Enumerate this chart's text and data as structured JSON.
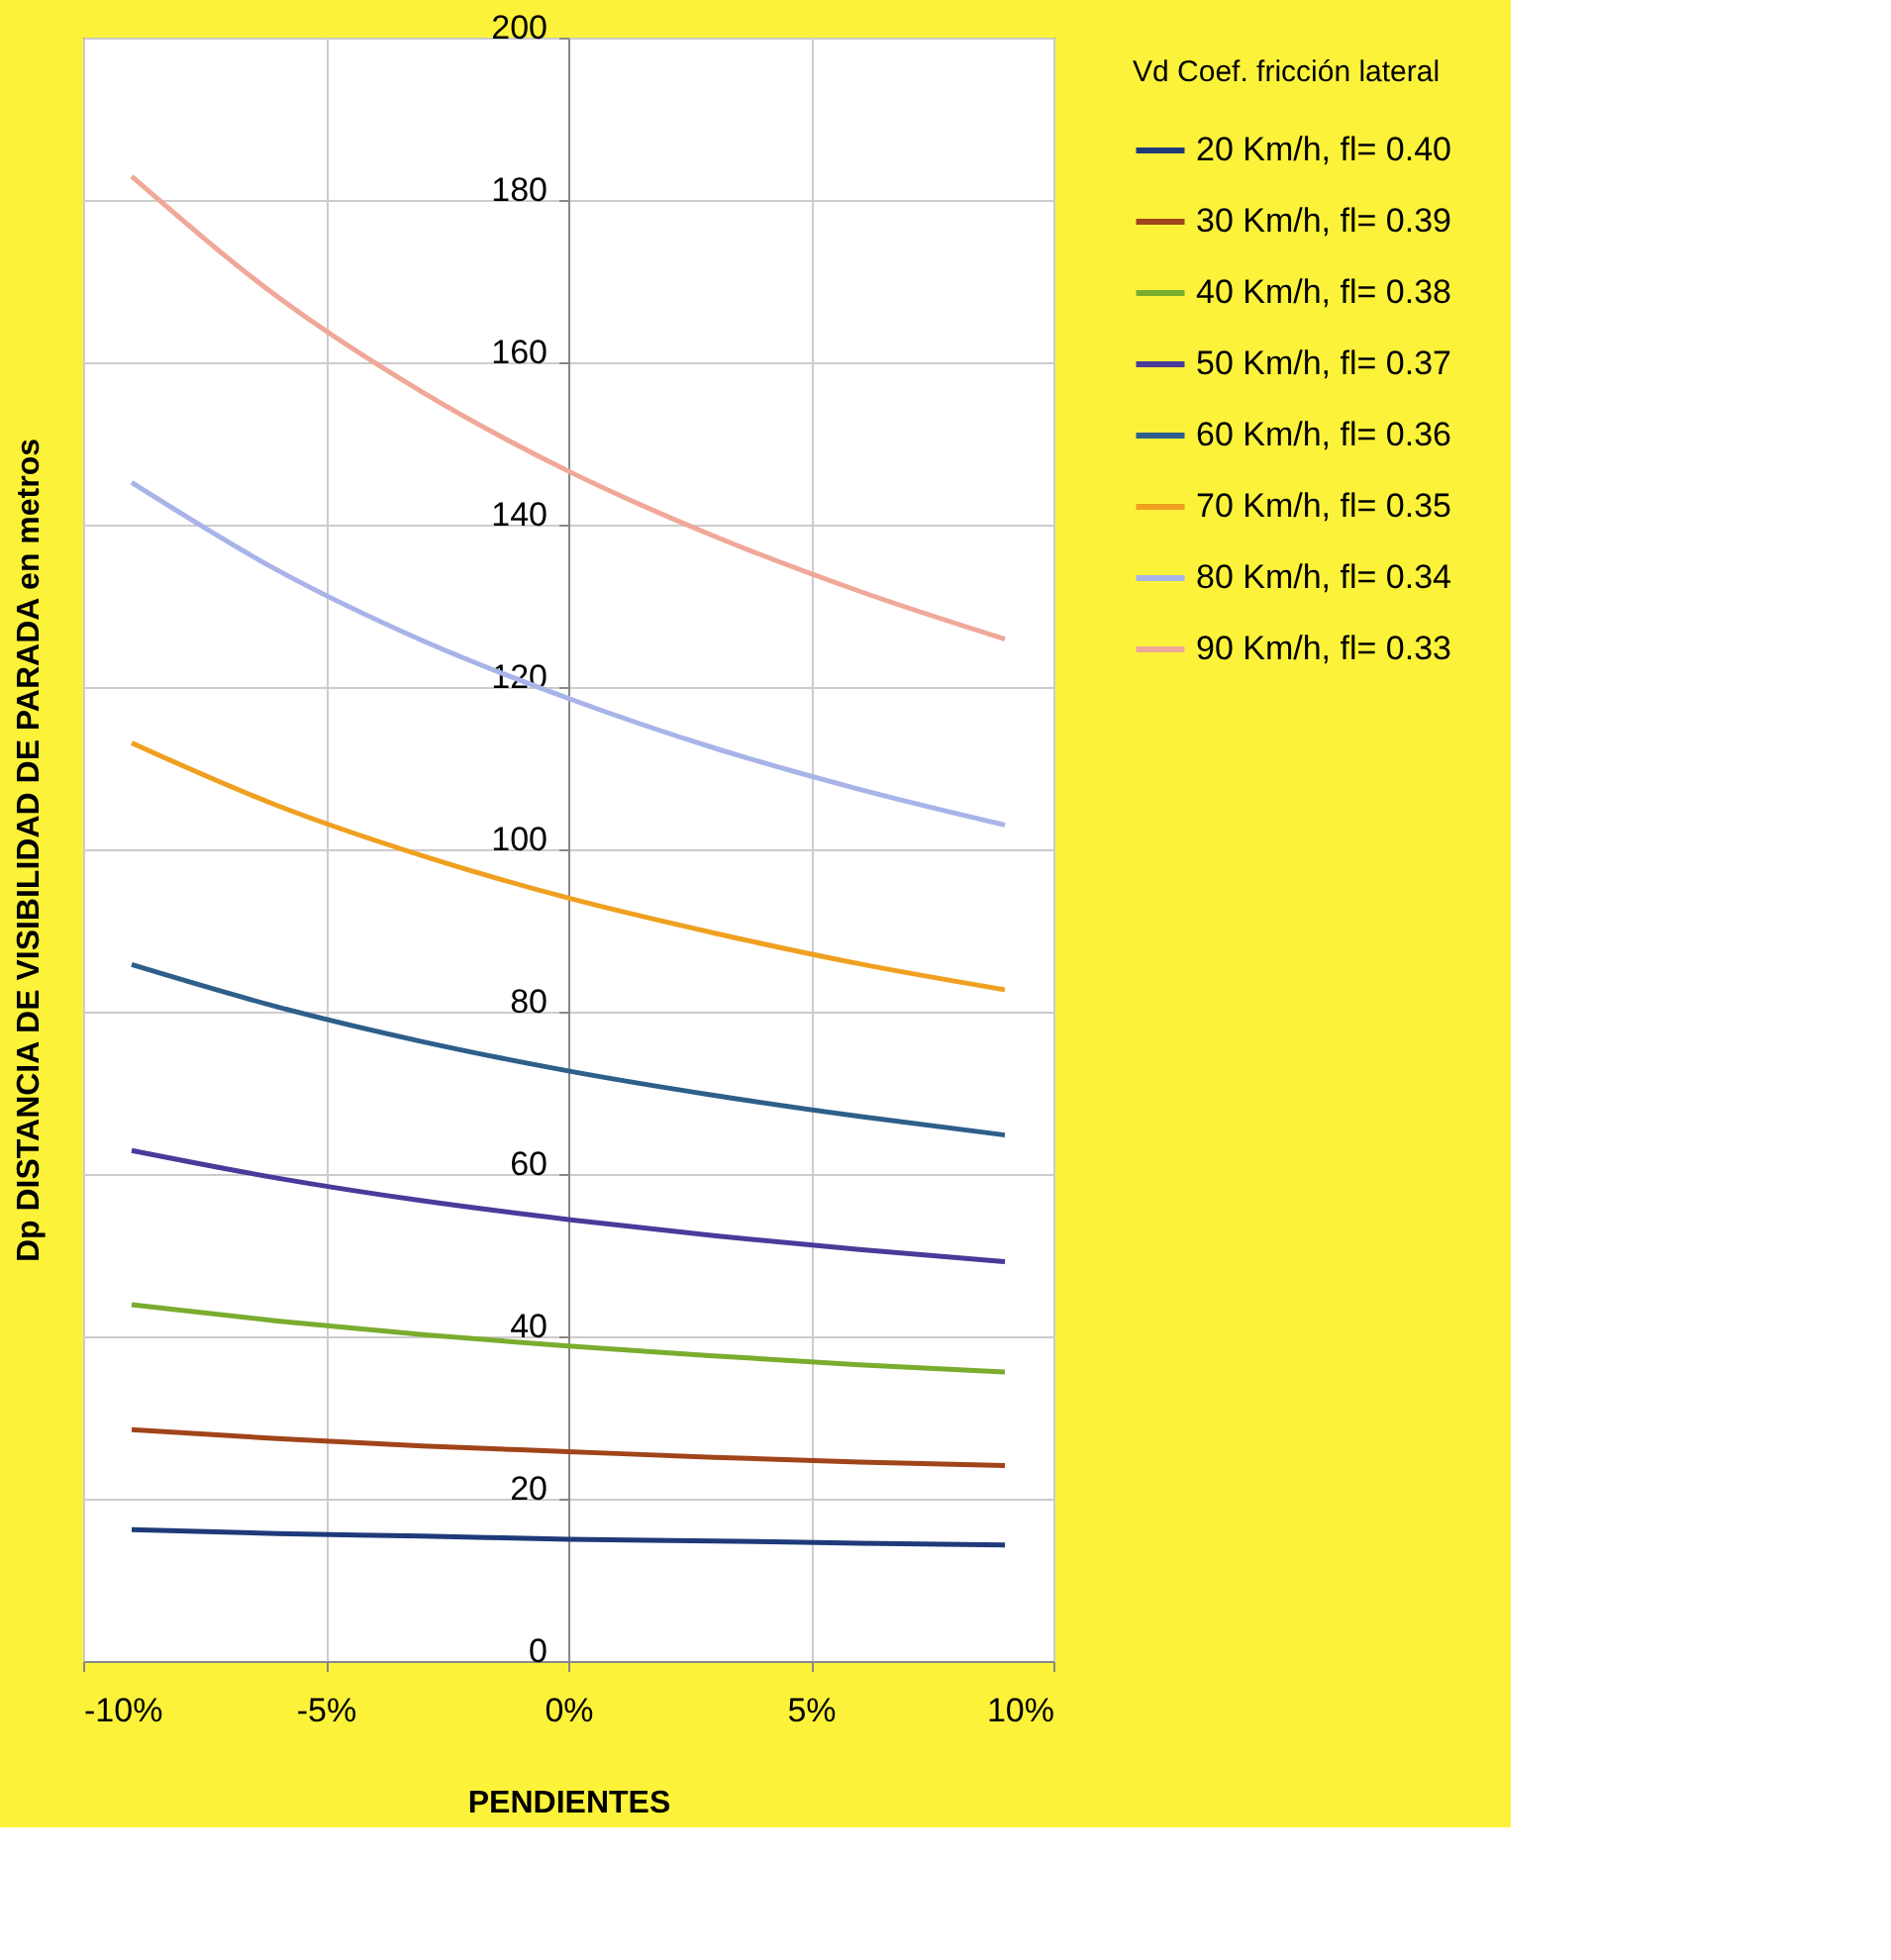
{
  "chart_data": {
    "type": "line",
    "xlabel": "PENDIENTES",
    "ylabel": "Dp  DISTANCIA DE VISIBILIDAD DE PARADA  en metros",
    "legend_title": "Vd      Coef. fricción lateral",
    "x": [
      -9,
      -6,
      -3,
      0,
      3,
      6,
      9
    ],
    "series": [
      {
        "name": "20 Km/h,  fl= 0.40",
        "color": "#1f3a7a",
        "values": [
          16.2,
          15.7,
          15.4,
          15.0,
          14.8,
          14.5,
          14.3
        ]
      },
      {
        "name": "30 Km/h,  fl= 0.39",
        "color": "#a0441a",
        "values": [
          28.5,
          27.4,
          26.5,
          25.8,
          25.1,
          24.5,
          24.1
        ]
      },
      {
        "name": "40 Km/h,  fl= 0.38",
        "color": "#7aac2e",
        "values": [
          43.9,
          41.9,
          40.2,
          38.8,
          37.6,
          36.5,
          35.6
        ]
      },
      {
        "name": "50 Km/h,  fl= 0.37",
        "color": "#4b3a9a",
        "values": [
          62.9,
          59.5,
          56.7,
          54.4,
          52.4,
          50.7,
          49.2
        ]
      },
      {
        "name": "60 Km/h,  fl= 0.36",
        "color": "#2e5f8a",
        "values": [
          85.8,
          80.6,
          76.3,
          72.7,
          69.7,
          67.1,
          64.8
        ]
      },
      {
        "name": "70 Km/h,  fl= 0.35",
        "color": "#f0a020",
        "values": [
          113.1,
          105.4,
          99.2,
          94.0,
          89.7,
          85.9,
          82.7
        ]
      },
      {
        "name": "80 Km/h,  fl= 0.34",
        "color": "#a8b4e8",
        "values": [
          145.2,
          134.4,
          125.7,
          118.6,
          112.5,
          107.4,
          103.0
        ]
      },
      {
        "name": "90 Km/h,  fl= 0.33",
        "color": "#f0a898",
        "values": [
          182.9,
          168.1,
          156.3,
          146.6,
          138.6,
          131.8,
          125.9
        ]
      }
    ],
    "xlim": [
      -10,
      10
    ],
    "xticks": [
      {
        "value": -10,
        "label": "-10%"
      },
      {
        "value": -5,
        "label": "-5%"
      },
      {
        "value": 0,
        "label": "0%"
      },
      {
        "value": 5,
        "label": "5%"
      },
      {
        "value": 10,
        "label": "10%"
      }
    ],
    "ylim": [
      0,
      200
    ],
    "yticks": [
      0,
      20,
      40,
      60,
      80,
      100,
      120,
      140,
      160,
      180,
      200
    ],
    "grid": true,
    "legend": "right",
    "marker": "none",
    "line_style": "solid"
  }
}
